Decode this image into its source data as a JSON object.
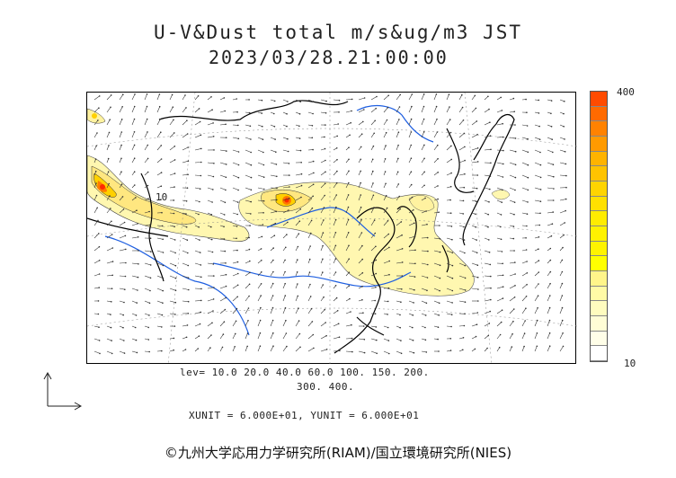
{
  "header": {
    "title": "U-V&Dust total m/s&ug/m3 JST",
    "datetime": "2023/03/28.21:00:00"
  },
  "colorbar": {
    "max_label": "400",
    "min_label": "10",
    "colors": [
      "#ff4b00",
      "#ff6a00",
      "#ff8200",
      "#ff9a00",
      "#ffb300",
      "#ffc300",
      "#ffd400",
      "#ffe000",
      "#ffec00",
      "#fff200",
      "#fff300",
      "#ffff00",
      "#fff58a",
      "#fffaa6",
      "#fffcbf",
      "#fffdd6",
      "#fffee8",
      "#ffffff"
    ]
  },
  "contour_label": "10",
  "levels": {
    "line1": "lev= 10.0 20.0 40.0 60.0 100. 150. 200.",
    "line2": "300. 400."
  },
  "units": "XUNIT = 6.000E+01, YUNIT = 6.000E+01",
  "credit": "©九州大学応用力学研究所(RIAM)/国立環境研究所(NIES)",
  "colors": {
    "coast": "#000000",
    "border": "#000000",
    "river": "#1f5fe0",
    "dust_low": "#fff7b0",
    "dust_mid": "#ffe24a",
    "dust_high": "#ff7a00",
    "dust_peak": "#ff2a00"
  }
}
